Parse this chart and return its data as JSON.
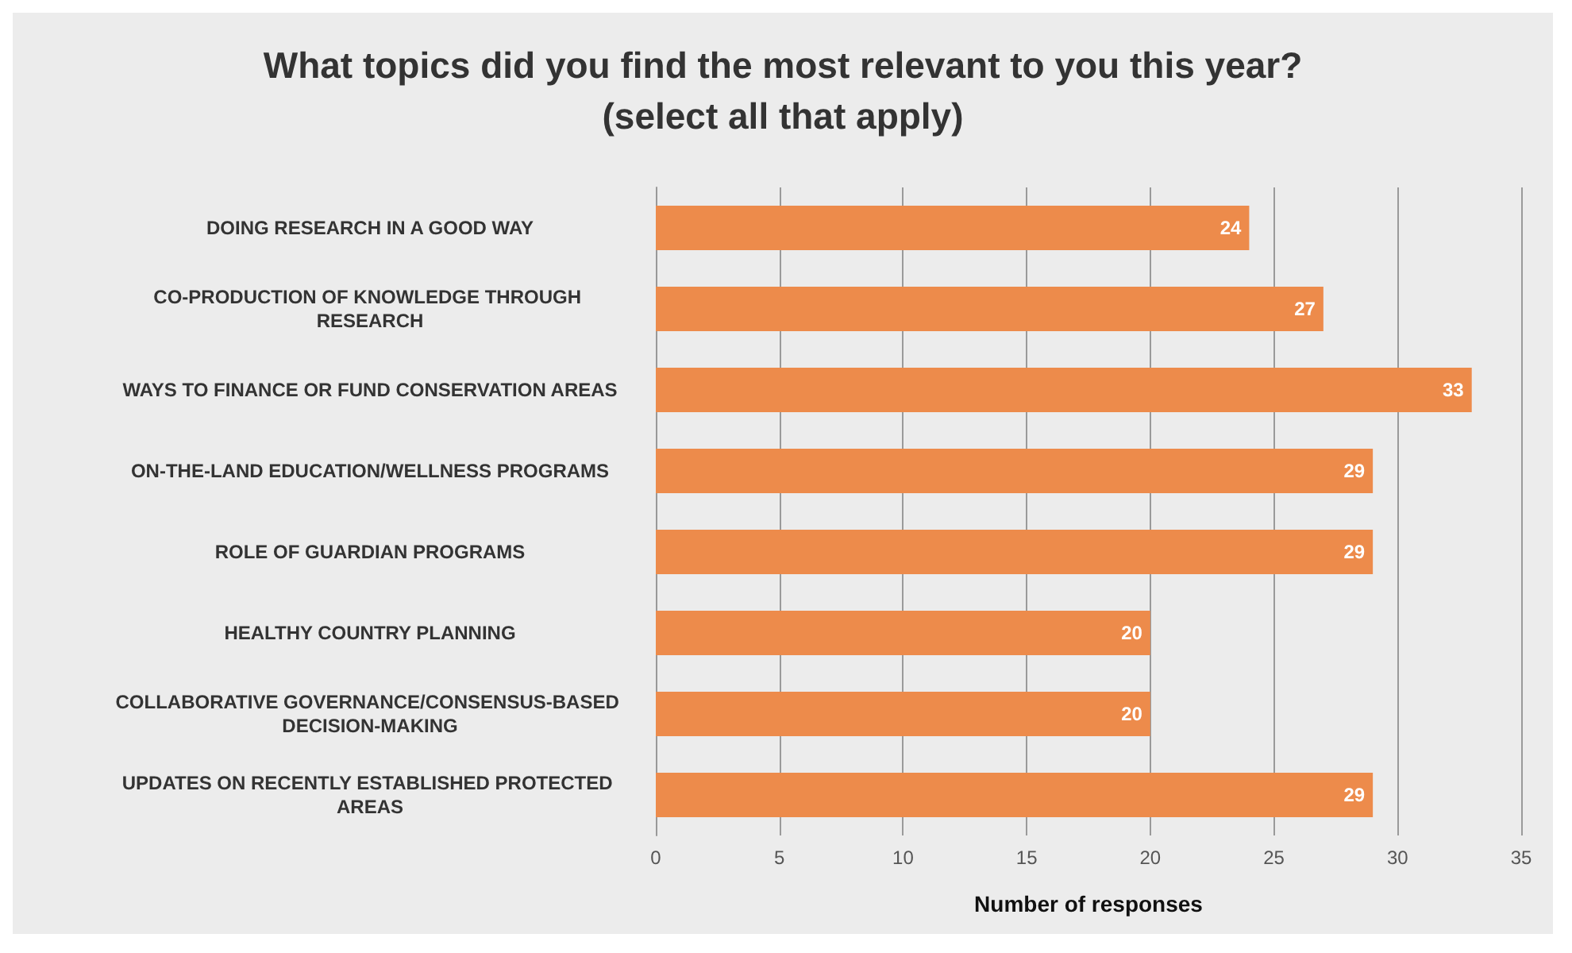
{
  "chart_data": {
    "type": "bar",
    "orientation": "horizontal",
    "title": "What topics did you find the most relevant to you this year?\n(select all that apply)",
    "xlabel": "Number of responses",
    "categories": [
      "DOING RESEARCH IN A GOOD WAY",
      "CO-PRODUCTION OF KNOWLEDGE THROUGH RESEARCH",
      "WAYS TO FINANCE OR FUND CONSERVATION AREAS",
      "ON-THE-LAND EDUCATION/WELLNESS PROGRAMS",
      "ROLE OF GUARDIAN PROGRAMS",
      "HEALTHY COUNTRY PLANNING",
      "COLLABORATIVE GOVERNANCE/CONSENSUS-BASED DECISION-MAKING",
      "UPDATES ON RECENTLY ESTABLISHED PROTECTED AREAS"
    ],
    "values": [
      24,
      27,
      33,
      29,
      29,
      20,
      20,
      29
    ],
    "color": "#ed8b4b",
    "data_labels": true,
    "xlim": [
      0,
      35
    ],
    "xticks": [
      0,
      5,
      10,
      15,
      20,
      25,
      30,
      35
    ],
    "grid": "x"
  }
}
